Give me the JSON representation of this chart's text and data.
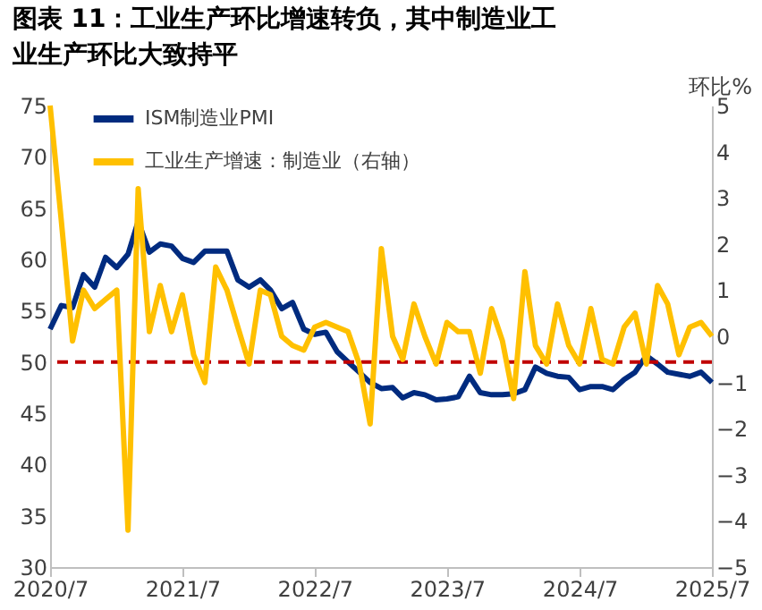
{
  "chart_data": {
    "type": "line",
    "title": "图表 11：工业生产环比增速转负，其中制造业工业生产环比大致持平",
    "y2label": "环比%",
    "x": [
      "2020-07",
      "2020-08",
      "2020-09",
      "2020-10",
      "2020-11",
      "2020-12",
      "2021-01",
      "2021-02",
      "2021-03",
      "2021-04",
      "2021-05",
      "2021-06",
      "2021-07",
      "2021-08",
      "2021-09",
      "2021-10",
      "2021-11",
      "2021-12",
      "2022-01",
      "2022-02",
      "2022-03",
      "2022-04",
      "2022-05",
      "2022-06",
      "2022-07",
      "2022-08",
      "2022-09",
      "2022-10",
      "2022-11",
      "2022-12",
      "2023-01",
      "2023-02",
      "2023-03",
      "2023-04",
      "2023-05",
      "2023-06",
      "2023-07",
      "2023-08",
      "2023-09",
      "2023-10",
      "2023-11",
      "2023-12",
      "2024-01",
      "2024-02",
      "2024-03",
      "2024-04",
      "2024-05",
      "2024-06",
      "2024-07",
      "2024-08",
      "2024-09",
      "2024-10",
      "2024-11",
      "2024-12",
      "2025-01",
      "2025-02",
      "2025-03",
      "2025-04",
      "2025-05",
      "2025-06",
      "2025-07"
    ],
    "series": [
      {
        "name": "ISM制造业PMI",
        "color": "#002b7f",
        "values": [
          53.2,
          55.5,
          55.3,
          58.5,
          57.3,
          60.2,
          59.2,
          60.5,
          63.7,
          60.7,
          61.5,
          61.3,
          60.1,
          59.7,
          60.8,
          60.8,
          60.8,
          58.0,
          57.3,
          58.0,
          57.0,
          55.2,
          55.8,
          53.2,
          52.7,
          52.9,
          51.0,
          50.0,
          49.0,
          48.0,
          47.4,
          47.5,
          46.5,
          47.0,
          46.8,
          46.3,
          46.4,
          46.6,
          48.6,
          47.0,
          46.8,
          46.8,
          46.9,
          47.3,
          49.5,
          48.9,
          48.6,
          48.5,
          47.3,
          47.6,
          47.6,
          47.3,
          48.3,
          49.0,
          50.6,
          49.8,
          49.0,
          48.8,
          48.6,
          49.0,
          48.0
        ]
      },
      {
        "name": "工业生产增速：制造业（右轴）",
        "color": "#ffc000",
        "axis": "y2",
        "values": [
          5.0,
          2.5,
          -0.1,
          1.0,
          0.6,
          0.8,
          1.0,
          -4.2,
          3.2,
          0.1,
          1.1,
          0.1,
          0.9,
          -0.4,
          -1.0,
          1.5,
          1.0,
          0.2,
          -0.6,
          1.0,
          0.9,
          0.0,
          -0.2,
          -0.3,
          0.2,
          0.3,
          0.2,
          0.1,
          -0.6,
          -1.9,
          1.9,
          0.0,
          -0.5,
          0.7,
          0.0,
          -0.6,
          0.3,
          0.1,
          0.1,
          -0.8,
          0.6,
          -0.1,
          -1.35,
          1.4,
          -0.2,
          -0.6,
          0.7,
          -0.2,
          -0.6,
          0.6,
          -0.5,
          -0.6,
          0.2,
          0.5,
          -0.6,
          1.1,
          0.7,
          -0.4,
          0.2,
          0.3,
          0.0
        ]
      }
    ],
    "xlim": [
      "2020-07",
      "2025-07"
    ],
    "xticks": [
      {
        "value": "2020-07",
        "label": "2020/7"
      },
      {
        "value": "2021-07",
        "label": "2021/7"
      },
      {
        "value": "2022-07",
        "label": "2022/7"
      },
      {
        "value": "2023-07",
        "label": "2023/7"
      },
      {
        "value": "2024-07",
        "label": "2024/7"
      },
      {
        "value": "2025-07",
        "label": "2025/7"
      }
    ],
    "ylim": [
      30,
      75
    ],
    "yticks": [
      30,
      35,
      40,
      45,
      50,
      55,
      60,
      65,
      70,
      75
    ],
    "y2lim": [
      -5,
      5
    ],
    "y2ticks": [
      -5,
      -4,
      -3,
      -2,
      -1,
      0,
      1,
      2,
      3,
      4,
      5
    ],
    "ref_lines": [
      {
        "axis": "y",
        "value": 50,
        "color": "#c00000",
        "line_style": "dashed"
      }
    ],
    "grid": false,
    "legend": "top",
    "marker": "none",
    "line_style": "solid"
  }
}
